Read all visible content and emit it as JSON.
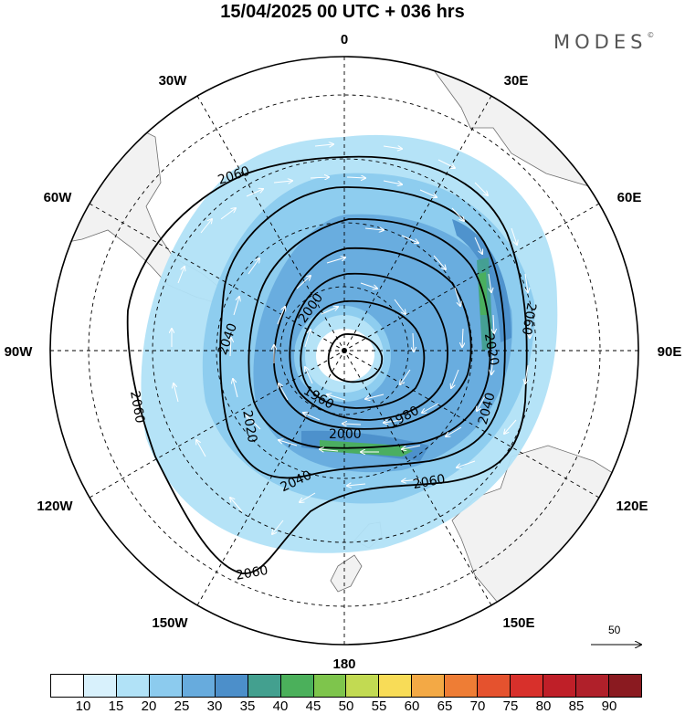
{
  "title": "15/04/2025  00 UTC  + 036 hrs",
  "brand": "MODES",
  "brand_mark": "©",
  "longitude_labels": {
    "lon_0": "0",
    "lon_30e": "30E",
    "lon_60e": "60E",
    "lon_90e": "90E",
    "lon_120e": "120E",
    "lon_150e": "150E",
    "lon_180": "180",
    "lon_150w": "150W",
    "lon_120w": "120W",
    "lon_90w": "90W",
    "lon_60w": "60W",
    "lon_30w": "30W"
  },
  "contour_labels": {
    "c2060_nw": "2060",
    "c2060_w": "2060",
    "c2060_s": "2060",
    "c2060_e": "2060",
    "c2060_se": "2060",
    "c2040_w": "2040",
    "c2040_s": "2040",
    "c2040_e": "2040",
    "c2020_w": "2020",
    "c2020_e": "2020",
    "c2000_n": "2000",
    "c2000_s": "2000",
    "c1980": "1980",
    "c1960": "1960"
  },
  "wind_reference": {
    "value": "50"
  },
  "colorbar": {
    "labels": [
      "10",
      "15",
      "20",
      "25",
      "30",
      "35",
      "40",
      "45",
      "50",
      "55",
      "60",
      "65",
      "70",
      "75",
      "80",
      "85",
      "90"
    ],
    "colors": [
      "#ffffff",
      "#d8f1fc",
      "#b1e2f7",
      "#8ccbee",
      "#67abdd",
      "#4c8fca",
      "#43a08f",
      "#4bb05b",
      "#7ec54c",
      "#c2da52",
      "#f8dc57",
      "#f3a945",
      "#ee7d35",
      "#e5522e",
      "#d8302b",
      "#bf1f28",
      "#b0202a",
      "#8a1a20"
    ]
  },
  "contour_levels": [
    1960,
    1980,
    2000,
    2020,
    2040,
    2060
  ],
  "projection": "polar stereographic, south pole centred"
}
